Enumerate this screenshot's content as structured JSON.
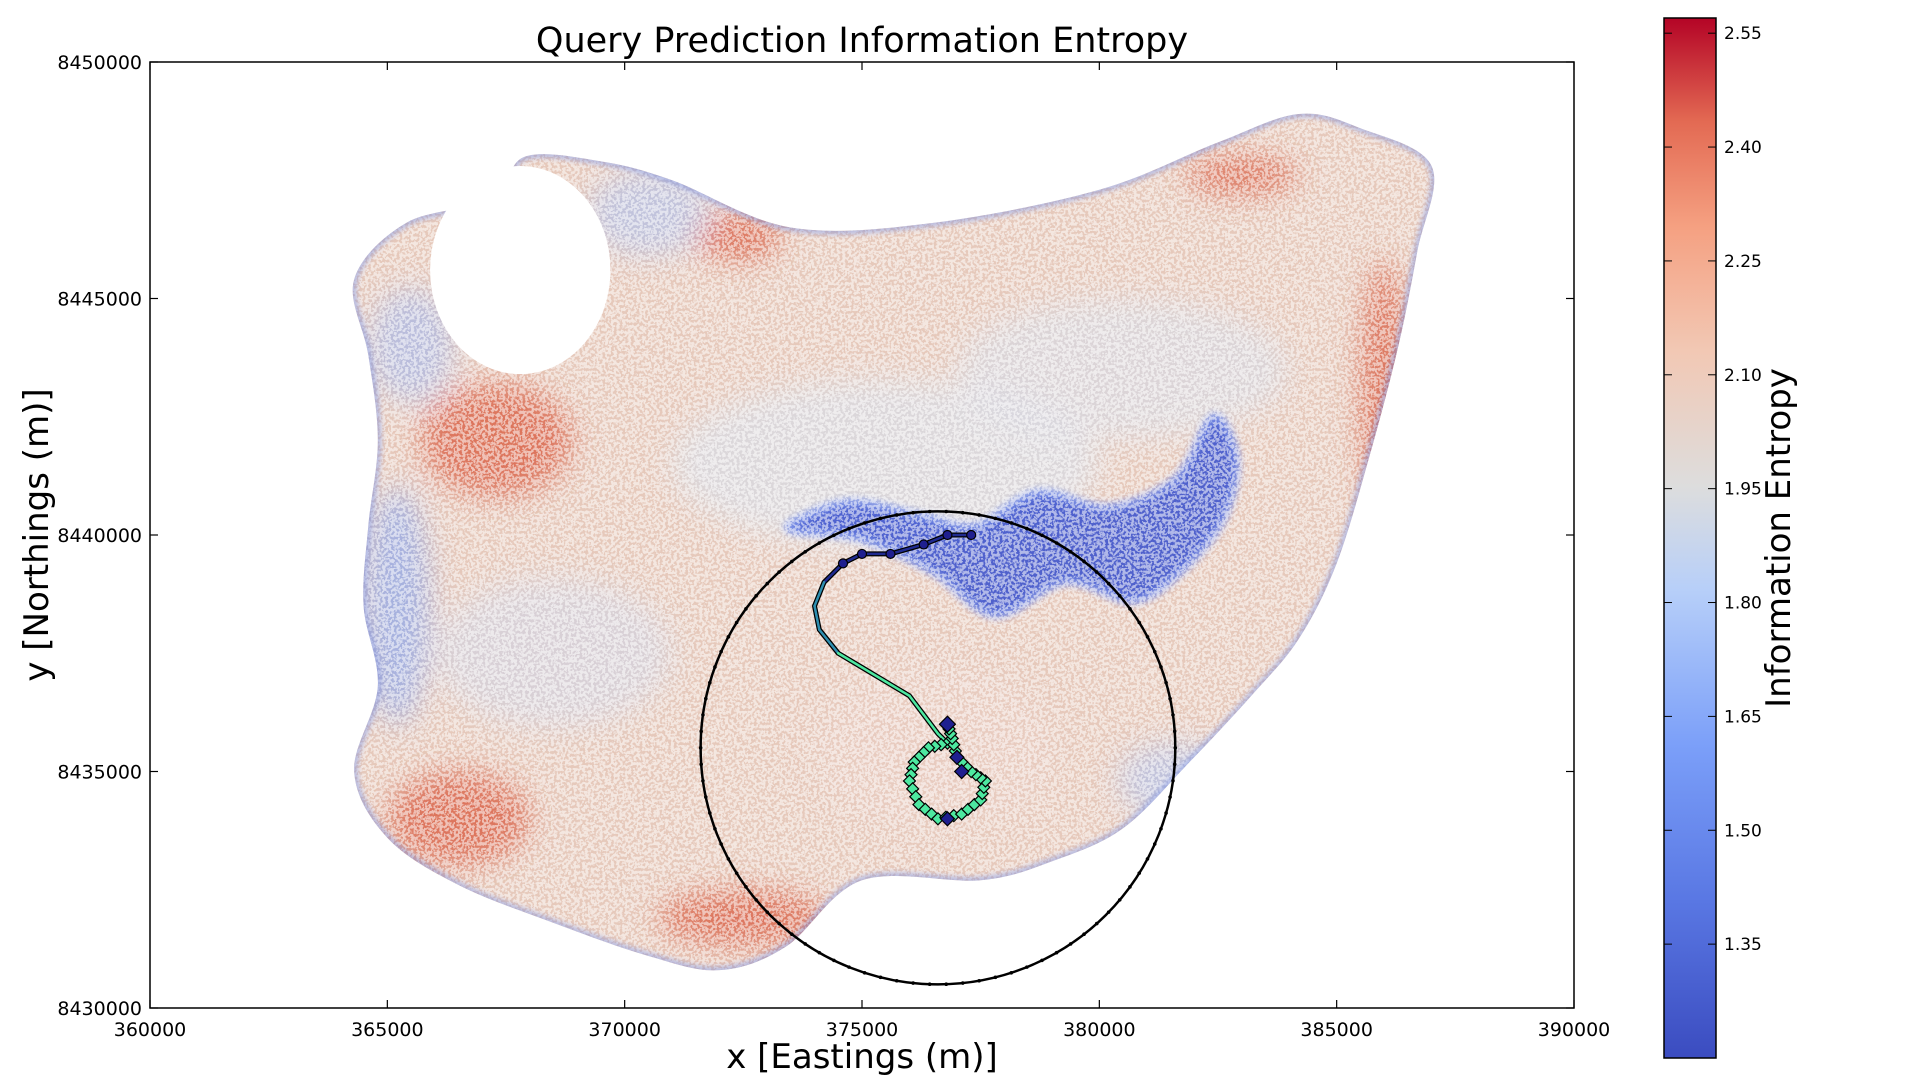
{
  "chart_data": {
    "type": "scatter",
    "title": "Query Prediction Information Entropy",
    "xlabel": "x [Eastings (m)]",
    "ylabel": "y [Northings (m)]",
    "xlim": [
      360000,
      390000
    ],
    "ylim": [
      8430000,
      8450000
    ],
    "xticks": [
      360000,
      365000,
      370000,
      375000,
      380000,
      385000,
      390000
    ],
    "yticks": [
      8430000,
      8435000,
      8440000,
      8445000,
      8450000
    ],
    "grid": false,
    "colormap": "coolwarm",
    "colors": {
      "low": "#3b4cc0",
      "mid": "#dddddd",
      "high": "#b40426",
      "path_low": "#1f1f8f",
      "path_high": "#4de8a0",
      "ring": "#000000"
    },
    "colorbar": {
      "label": "Information Entropy",
      "range": [
        1.2,
        2.57
      ],
      "ticks": [
        "1.35",
        "1.50",
        "1.65",
        "1.80",
        "1.95",
        "2.10",
        "2.25",
        "2.40",
        "2.55"
      ]
    },
    "search_circle": {
      "center": [
        376600,
        8435500
      ],
      "radius": 5000
    },
    "region_outline": [
      [
        364300,
        8445400
      ],
      [
        365400,
        8446600
      ],
      [
        367200,
        8447100
      ],
      [
        367900,
        8448000
      ],
      [
        369500,
        8447900
      ],
      [
        371000,
        8447500
      ],
      [
        373500,
        8446500
      ],
      [
        376500,
        8446600
      ],
      [
        380000,
        8447300
      ],
      [
        382500,
        8448300
      ],
      [
        384200,
        8448900
      ],
      [
        385500,
        8448600
      ],
      [
        387000,
        8447800
      ],
      [
        386700,
        8446000
      ],
      [
        386300,
        8444000
      ],
      [
        385700,
        8441700
      ],
      [
        385000,
        8439400
      ],
      [
        384200,
        8437800
      ],
      [
        383200,
        8436600
      ],
      [
        381900,
        8435200
      ],
      [
        380500,
        8433800
      ],
      [
        379000,
        8433100
      ],
      [
        377500,
        8432700
      ],
      [
        375000,
        8432700
      ],
      [
        373400,
        8431300
      ],
      [
        372000,
        8430800
      ],
      [
        370500,
        8431100
      ],
      [
        368500,
        8431800
      ],
      [
        366500,
        8432600
      ],
      [
        365000,
        8433600
      ],
      [
        364300,
        8435000
      ],
      [
        364800,
        8436800
      ],
      [
        364500,
        8438500
      ],
      [
        364600,
        8440200
      ],
      [
        364800,
        8442000
      ],
      [
        364600,
        8443800
      ]
    ],
    "low_entropy_channel": [
      [
        373500,
        8440100
      ],
      [
        375000,
        8439900
      ],
      [
        376500,
        8439200
      ],
      [
        377800,
        8438300
      ],
      [
        379300,
        8439000
      ],
      [
        380700,
        8438600
      ],
      [
        381700,
        8439200
      ],
      [
        382600,
        8440300
      ],
      [
        382900,
        8441600
      ],
      [
        382400,
        8442500
      ],
      [
        381600,
        8441200
      ],
      [
        380200,
        8440600
      ],
      [
        378700,
        8440900
      ],
      [
        377400,
        8440200
      ],
      [
        376300,
        8440400
      ],
      [
        374800,
        8440700
      ],
      [
        373800,
        8440400
      ]
    ],
    "high_entropy_zones": [
      {
        "center": [
          367300,
          8442000
        ],
        "radius": [
          1600,
          1200
        ]
      },
      {
        "center": [
          366500,
          8434000
        ],
        "radius": [
          1500,
          1000
        ]
      },
      {
        "center": [
          372500,
          8431900
        ],
        "radius": [
          1800,
          600
        ]
      },
      {
        "center": [
          386000,
          8443000
        ],
        "radius": [
          500,
          2800
        ]
      },
      {
        "center": [
          372400,
          8446300
        ],
        "radius": [
          900,
          500
        ]
      },
      {
        "center": [
          383000,
          8447600
        ],
        "radius": [
          1200,
          400
        ]
      }
    ],
    "void_ellipse": {
      "center": [
        367800,
        8445600
      ],
      "radius": [
        1900,
        2200
      ]
    },
    "traversed_path": [
      [
        377300,
        8440000
      ],
      [
        376800,
        8440000
      ],
      [
        376300,
        8439800
      ],
      [
        375600,
        8439600
      ],
      [
        375000,
        8439600
      ],
      [
        374600,
        8439400
      ],
      [
        374200,
        8439000
      ],
      [
        374000,
        8438500
      ],
      [
        374100,
        8438000
      ],
      [
        374500,
        8437500
      ],
      [
        375000,
        8437200
      ],
      [
        375500,
        8436900
      ],
      [
        376000,
        8436600
      ],
      [
        376300,
        8436200
      ],
      [
        376600,
        8435800
      ],
      [
        376800,
        8435600
      ]
    ],
    "planned_path": [
      [
        376800,
        8435600
      ],
      [
        376400,
        8435500
      ],
      [
        376100,
        8435200
      ],
      [
        376000,
        8434800
      ],
      [
        376200,
        8434300
      ],
      [
        376600,
        8434000
      ],
      [
        377100,
        8434100
      ],
      [
        377500,
        8434400
      ],
      [
        377600,
        8434800
      ],
      [
        377300,
        8435000
      ],
      [
        377000,
        8435300
      ],
      [
        376900,
        8435700
      ],
      [
        376800,
        8436000
      ]
    ],
    "start_marker": [
      376800,
      8436000
    ],
    "end_marker": [
      376800,
      8434000
    ]
  }
}
